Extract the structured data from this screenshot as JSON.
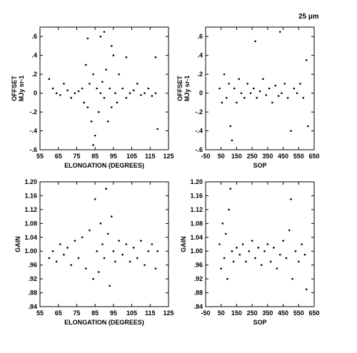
{
  "figure_label": "25 µm",
  "chart_data": [
    {
      "type": "scatter",
      "ylabel": "OFFSET\nMJy sr-1",
      "xlabel": "ELONGATION (DEGREES)",
      "xlim": [
        55,
        125
      ],
      "ylim": [
        -0.6,
        0.7
      ],
      "x_ticks": [
        55,
        65,
        75,
        85,
        95,
        105,
        115,
        125
      ],
      "y_ticks": [
        -0.6,
        -0.4,
        -0.2,
        0,
        0.2,
        0.4,
        0.6
      ],
      "x_tick_labels": [
        "55",
        "65",
        "75",
        "85",
        "95",
        "105",
        "115",
        "125"
      ],
      "y_tick_labels": [
        "-.6",
        "-.4",
        "-.2",
        "0",
        ".2",
        ".4",
        ".6"
      ],
      "points": [
        [
          60,
          0.15
        ],
        [
          62,
          0.05
        ],
        [
          64,
          0.0
        ],
        [
          66,
          -0.02
        ],
        [
          68,
          0.1
        ],
        [
          70,
          0.03
        ],
        [
          72,
          -0.05
        ],
        [
          74,
          0.0
        ],
        [
          76,
          0.02
        ],
        [
          78,
          0.05
        ],
        [
          79,
          -0.1
        ],
        [
          80,
          0.3
        ],
        [
          81,
          -0.15
        ],
        [
          82,
          0.1
        ],
        [
          83,
          -0.3
        ],
        [
          84,
          0.2
        ],
        [
          85,
          -0.45
        ],
        [
          86,
          0.05
        ],
        [
          87,
          -0.2
        ],
        [
          88,
          0.0
        ],
        [
          89,
          0.12
        ],
        [
          90,
          -0.05
        ],
        [
          91,
          0.25
        ],
        [
          92,
          -0.3
        ],
        [
          93,
          0.05
        ],
        [
          94,
          -0.15
        ],
        [
          95,
          0.4
        ],
        [
          96,
          0.0
        ],
        [
          97,
          -0.1
        ],
        [
          98,
          0.2
        ],
        [
          100,
          0.05
        ],
        [
          102,
          -0.05
        ],
        [
          104,
          0.0
        ],
        [
          106,
          0.03
        ],
        [
          108,
          0.1
        ],
        [
          110,
          -0.02
        ],
        [
          112,
          0.0
        ],
        [
          114,
          0.05
        ],
        [
          116,
          -0.03
        ],
        [
          118,
          0.0
        ],
        [
          119,
          -0.38
        ],
        [
          118,
          0.38
        ],
        [
          90,
          0.65
        ],
        [
          94,
          0.5
        ],
        [
          81,
          0.58
        ],
        [
          88,
          0.6
        ],
        [
          102,
          0.38
        ],
        [
          84,
          -0.55
        ]
      ]
    },
    {
      "type": "scatter",
      "ylabel": "OFFSET\nMJy sr-1",
      "xlabel": "SOP",
      "xlim": [
        -50,
        650
      ],
      "ylim": [
        -0.6,
        0.7
      ],
      "x_ticks": [
        -50,
        50,
        150,
        250,
        350,
        450,
        550,
        650
      ],
      "y_ticks": [
        -0.6,
        -0.4,
        -0.2,
        0,
        0.2,
        0.4,
        0.6
      ],
      "x_tick_labels": [
        "-50",
        "50",
        "150",
        "250",
        "350",
        "450",
        "550",
        "650"
      ],
      "y_tick_labels": [
        "-.6",
        "-.4",
        "-.2",
        "0",
        ".2",
        ".4",
        ".6"
      ],
      "points": [
        [
          40,
          0.05
        ],
        [
          55,
          -0.1
        ],
        [
          70,
          0.2
        ],
        [
          85,
          -0.05
        ],
        [
          100,
          0.1
        ],
        [
          110,
          -0.35
        ],
        [
          120,
          -0.5
        ],
        [
          135,
          0.05
        ],
        [
          150,
          -0.1
        ],
        [
          165,
          0.15
        ],
        [
          180,
          0.0
        ],
        [
          200,
          -0.05
        ],
        [
          220,
          0.1
        ],
        [
          240,
          0.0
        ],
        [
          260,
          0.05
        ],
        [
          280,
          -0.05
        ],
        [
          300,
          0.02
        ],
        [
          320,
          0.15
        ],
        [
          340,
          -0.02
        ],
        [
          360,
          0.05
        ],
        [
          380,
          -0.1
        ],
        [
          400,
          0.08
        ],
        [
          420,
          -0.03
        ],
        [
          440,
          0.0
        ],
        [
          460,
          0.1
        ],
        [
          480,
          -0.05
        ],
        [
          500,
          -0.4
        ],
        [
          520,
          0.05
        ],
        [
          540,
          0.0
        ],
        [
          560,
          0.1
        ],
        [
          580,
          -0.05
        ],
        [
          600,
          0.35
        ],
        [
          610,
          -0.35
        ],
        [
          270,
          0.55
        ],
        [
          430,
          0.65
        ]
      ]
    },
    {
      "type": "scatter",
      "ylabel": "GAIN",
      "xlabel": "ELONGATION (DEGREES)",
      "xlim": [
        55,
        125
      ],
      "ylim": [
        0.84,
        1.2
      ],
      "x_ticks": [
        55,
        65,
        75,
        85,
        95,
        105,
        115,
        125
      ],
      "y_ticks": [
        0.84,
        0.88,
        0.92,
        0.96,
        1.0,
        1.04,
        1.08,
        1.12,
        1.16,
        1.2
      ],
      "x_tick_labels": [
        "55",
        "65",
        "75",
        "85",
        "95",
        "105",
        "115",
        "125"
      ],
      "y_tick_labels": [
        ".84",
        ".88",
        ".92",
        ".96",
        "1.00",
        "1.04",
        "1.08",
        "1.12",
        "1.16",
        "1.20"
      ],
      "points": [
        [
          60,
          0.98
        ],
        [
          62,
          1.0
        ],
        [
          64,
          0.97
        ],
        [
          66,
          1.02
        ],
        [
          68,
          0.99
        ],
        [
          70,
          1.01
        ],
        [
          72,
          0.96
        ],
        [
          74,
          1.03
        ],
        [
          76,
          0.98
        ],
        [
          78,
          1.04
        ],
        [
          80,
          0.95
        ],
        [
          82,
          1.06
        ],
        [
          84,
          0.92
        ],
        [
          85,
          1.15
        ],
        [
          86,
          1.0
        ],
        [
          87,
          0.94
        ],
        [
          88,
          1.08
        ],
        [
          89,
          1.02
        ],
        [
          90,
          0.98
        ],
        [
          91,
          1.18
        ],
        [
          92,
          1.05
        ],
        [
          93,
          0.9
        ],
        [
          94,
          1.1
        ],
        [
          95,
          1.0
        ],
        [
          96,
          0.97
        ],
        [
          98,
          1.03
        ],
        [
          100,
          0.99
        ],
        [
          102,
          1.02
        ],
        [
          104,
          0.97
        ],
        [
          106,
          1.01
        ],
        [
          108,
          0.98
        ],
        [
          110,
          1.03
        ],
        [
          112,
          0.96
        ],
        [
          114,
          1.0
        ],
        [
          116,
          1.02
        ],
        [
          118,
          0.95
        ],
        [
          119,
          1.0
        ]
      ]
    },
    {
      "type": "scatter",
      "ylabel": "GAIN",
      "xlabel": "SOP",
      "xlim": [
        -50,
        650
      ],
      "ylim": [
        0.84,
        1.2
      ],
      "x_ticks": [
        -50,
        50,
        150,
        250,
        350,
        450,
        550,
        650
      ],
      "y_ticks": [
        0.84,
        0.88,
        0.92,
        0.96,
        1.0,
        1.04,
        1.08,
        1.12,
        1.16,
        1.2
      ],
      "x_tick_labels": [
        "-50",
        "50",
        "150",
        "250",
        "350",
        "450",
        "550",
        "650"
      ],
      "y_tick_labels": [
        ".84",
        ".88",
        ".92",
        ".96",
        "1.00",
        "1.04",
        "1.08",
        "1.12",
        "1.16",
        "1.20"
      ],
      "points": [
        [
          40,
          1.02
        ],
        [
          50,
          0.95
        ],
        [
          60,
          1.08
        ],
        [
          70,
          0.98
        ],
        [
          80,
          1.05
        ],
        [
          90,
          0.92
        ],
        [
          100,
          1.12
        ],
        [
          110,
          1.18
        ],
        [
          120,
          1.0
        ],
        [
          130,
          0.97
        ],
        [
          150,
          1.01
        ],
        [
          170,
          0.99
        ],
        [
          190,
          1.02
        ],
        [
          210,
          0.97
        ],
        [
          230,
          1.0
        ],
        [
          250,
          1.03
        ],
        [
          270,
          0.98
        ],
        [
          290,
          1.01
        ],
        [
          310,
          0.96
        ],
        [
          330,
          1.0
        ],
        [
          350,
          1.02
        ],
        [
          370,
          0.97
        ],
        [
          390,
          1.01
        ],
        [
          410,
          0.95
        ],
        [
          430,
          0.99
        ],
        [
          450,
          1.03
        ],
        [
          470,
          0.98
        ],
        [
          490,
          1.06
        ],
        [
          500,
          1.15
        ],
        [
          510,
          0.92
        ],
        [
          530,
          1.0
        ],
        [
          550,
          0.97
        ],
        [
          570,
          1.02
        ],
        [
          590,
          0.99
        ],
        [
          600,
          0.89
        ]
      ]
    }
  ]
}
